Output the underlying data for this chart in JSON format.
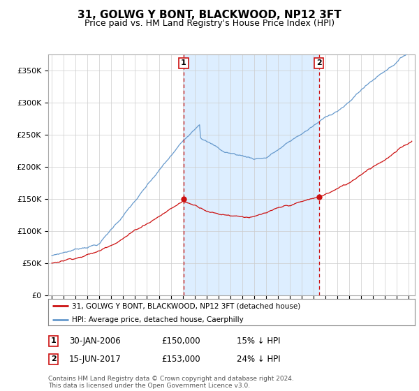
{
  "title": "31, GOLWG Y BONT, BLACKWOOD, NP12 3FT",
  "subtitle": "Price paid vs. HM Land Registry's House Price Index (HPI)",
  "title_fontsize": 11,
  "subtitle_fontsize": 9,
  "ylabel_ticks": [
    "£0",
    "£50K",
    "£100K",
    "£150K",
    "£200K",
    "£250K",
    "£300K",
    "£350K"
  ],
  "ytick_values": [
    0,
    50000,
    100000,
    150000,
    200000,
    250000,
    300000,
    350000
  ],
  "ylim": [
    0,
    375000
  ],
  "xlim_start": 1994.7,
  "xlim_end": 2025.5,
  "hpi_color": "#6699cc",
  "price_color": "#cc1111",
  "shade_color": "#ddeeff",
  "marker1_x": 2006.08,
  "marker1_y": 150000,
  "marker2_x": 2017.45,
  "marker2_y": 153000,
  "legend_label1": "31, GOLWG Y BONT, BLACKWOOD, NP12 3FT (detached house)",
  "legend_label2": "HPI: Average price, detached house, Caerphilly",
  "table_row1": [
    "1",
    "30-JAN-2006",
    "£150,000",
    "15% ↓ HPI"
  ],
  "table_row2": [
    "2",
    "15-JUN-2017",
    "£153,000",
    "24% ↓ HPI"
  ],
  "footer": "Contains HM Land Registry data © Crown copyright and database right 2024.\nThis data is licensed under the Open Government Licence v3.0.",
  "background_color": "#ffffff",
  "plot_background": "#ffffff",
  "grid_color": "#cccccc"
}
